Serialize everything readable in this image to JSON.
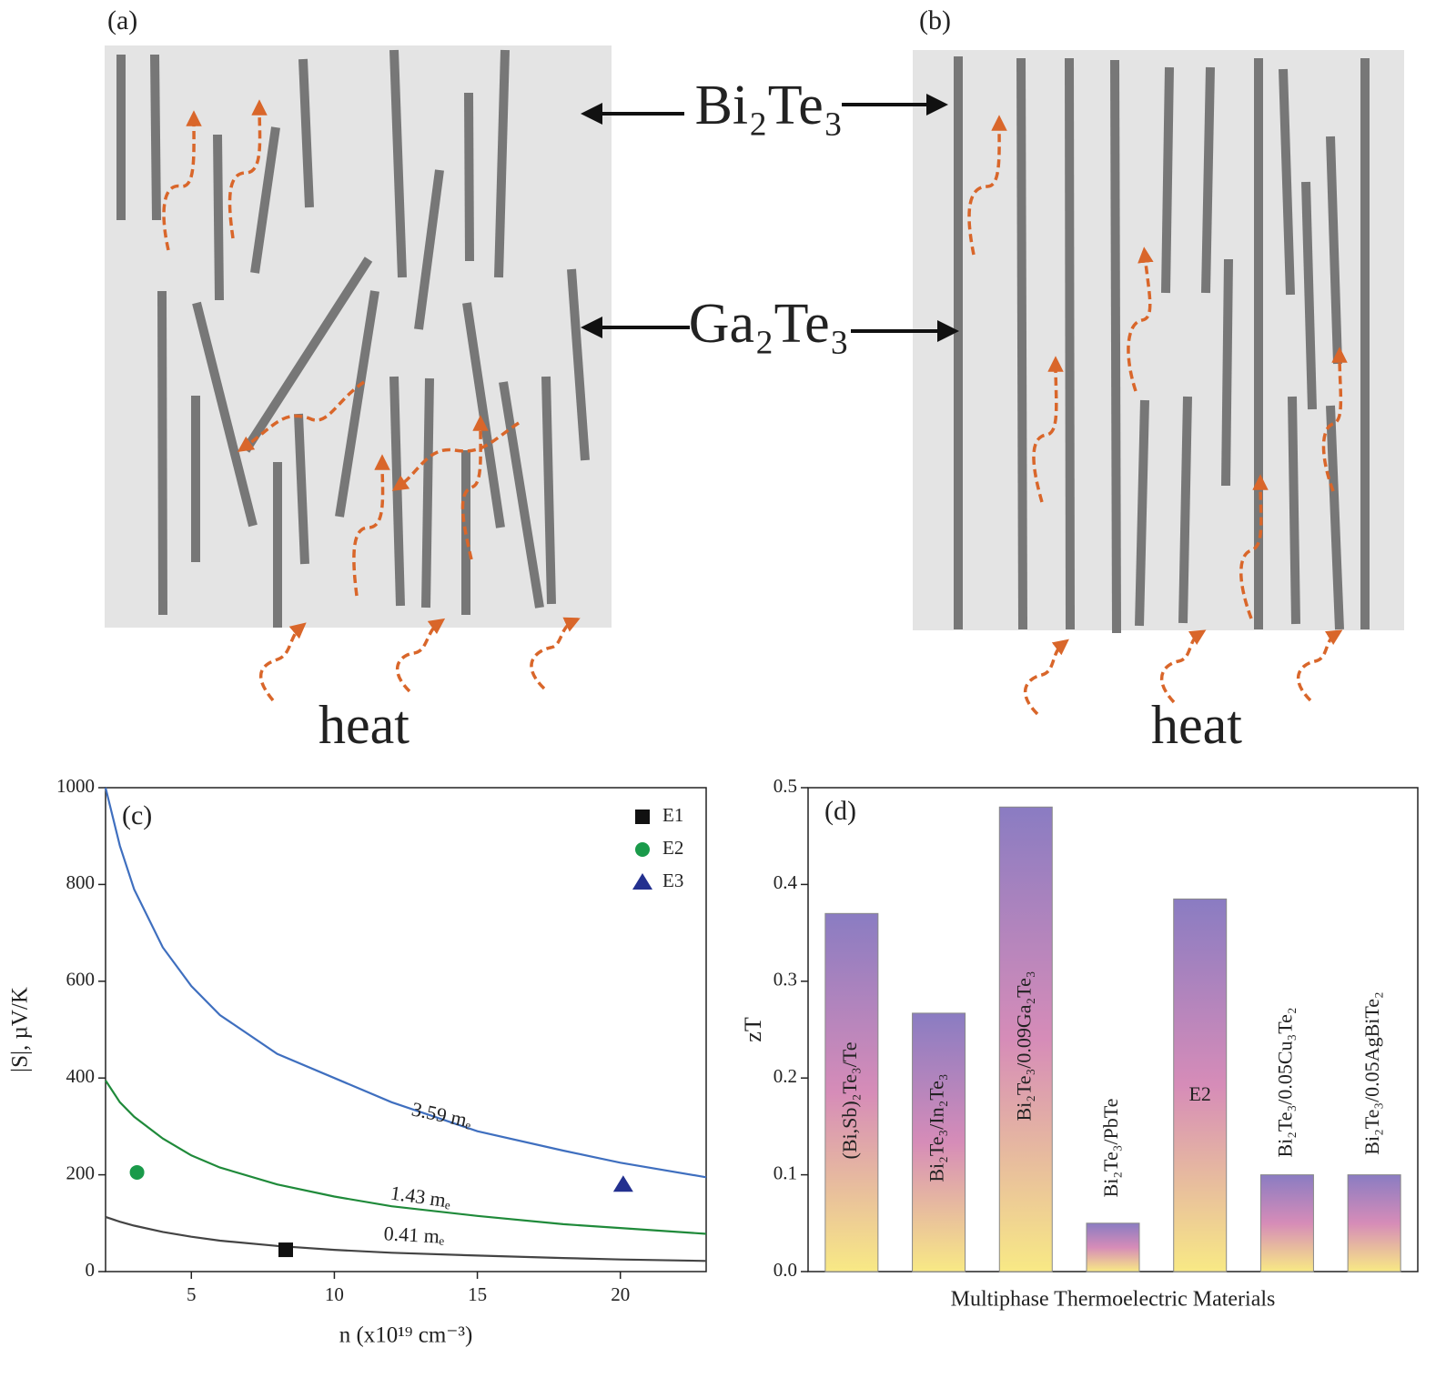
{
  "diagrams": {
    "panel_a": "(a)",
    "panel_b": "(b)",
    "phase_1": "Bi₂Te₃",
    "phase_2": "Ga₂Te₃",
    "heat_a": "heat",
    "heat_b": "heat"
  },
  "chart_data": [
    {
      "type": "line",
      "panel": "(c)",
      "x_label": "n (x10¹⁹ cm⁻³)",
      "y_label": "|S|, µV/K",
      "x": [
        2,
        2.5,
        3,
        4,
        5,
        6,
        8,
        10,
        12,
        15,
        18,
        20,
        23
      ],
      "curves": [
        {
          "label": "3.59 mₑ",
          "color": "#3f6fbf",
          "values": [
            1000,
            880,
            790,
            670,
            590,
            530,
            450,
            400,
            350,
            290,
            250,
            225,
            195
          ]
        },
        {
          "label": "1.43 mₑ",
          "color": "#1f8a3a",
          "values": [
            395,
            350,
            320,
            275,
            240,
            215,
            180,
            155,
            135,
            115,
            98,
            90,
            78
          ]
        },
        {
          "label": "0.41 mₑ",
          "color": "#444444",
          "values": [
            113,
            103,
            95,
            82,
            72,
            64,
            53,
            45,
            39,
            33,
            28,
            25,
            22
          ]
        }
      ],
      "series": [
        {
          "name": "E1",
          "marker": "square",
          "color": "#111111",
          "x": [
            8.3
          ],
          "values": [
            45
          ]
        },
        {
          "name": "E2",
          "marker": "circle",
          "color": "#1a9a4a",
          "x": [
            3.1
          ],
          "values": [
            205
          ]
        },
        {
          "name": "E3",
          "marker": "triangle",
          "color": "#23308f",
          "x": [
            20.1
          ],
          "values": [
            180
          ]
        }
      ],
      "xlim": [
        2,
        23
      ],
      "xticks": [
        5,
        10,
        15,
        20
      ],
      "ylim": [
        0,
        1000
      ],
      "yticks": [
        0,
        200,
        400,
        600,
        800,
        1000
      ],
      "legend": "top-right"
    },
    {
      "type": "bar",
      "panel": "(d)",
      "x_label": "Multiphase Thermoelectric Materials",
      "y_label": "zT",
      "categories": [
        "(Bi,Sb)₂Te₃/Te",
        "Bi₂Te₃/In₂Te₃",
        "Bi₂Te₃/0.09Ga₂Te₃",
        "Bi₂Te₃/PbTe",
        "E2",
        "Bi₂Te₃/0.05Cu₃Te₂",
        "Bi₂Te₃/0.05AgBiTe₂"
      ],
      "values": [
        0.37,
        0.267,
        0.48,
        0.05,
        0.385,
        0.1,
        0.1
      ],
      "gradient": [
        "#8a7cc2",
        "#d68cb8",
        "#f8e985"
      ],
      "ylim": [
        0,
        0.5
      ],
      "yticks": [
        {
          "value": 0,
          "label": "0.0"
        },
        0.1,
        0.2,
        0.3,
        0.4,
        0.5
      ]
    }
  ]
}
